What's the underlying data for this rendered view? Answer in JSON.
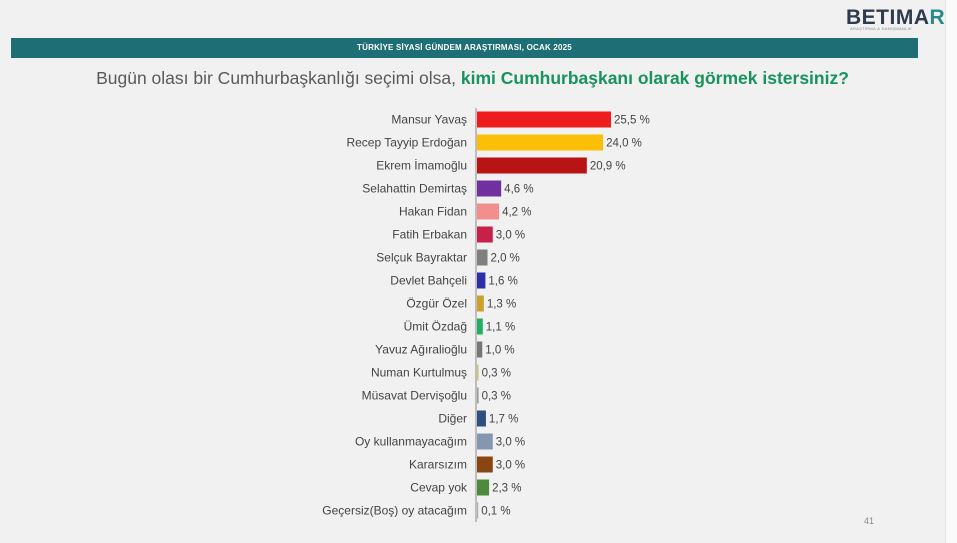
{
  "header": {
    "logo_text_main": "BETIMA",
    "logo_text_accent": "R",
    "logo_subtitle": "ARAŞTIRMA & DANIŞMANLIK",
    "banner": "TÜRKİYE SİYASİ GÜNDEM ARAŞTIRMASI, OCAK 2025"
  },
  "question": {
    "prefix": "Bugün olası bir Cumhurbaşkanlığı seçimi olsa,",
    "highlight": "kimi Cumhurbaşkanı olarak görmek istersiniz?"
  },
  "page_number": "41",
  "chart_data": {
    "type": "bar",
    "orientation": "horizontal",
    "categories": [
      "Mansur Yavaş",
      "Recep Tayyip Erdoğan",
      "Ekrem İmamoğlu",
      "Selahattin Demirtaş",
      "Hakan Fidan",
      "Fatih Erbakan",
      "Selçuk Bayraktar",
      "Devlet Bahçeli",
      "Özgür Özel",
      "Ümit Özdağ",
      "Yavuz Ağıralioğlu",
      "Numan Kurtulmuş",
      "Müsavat Dervişoğlu",
      "Diğer",
      "Oy kullanmayacağım",
      "Kararsızım",
      "Cevap yok",
      "Geçersiz(Boş) oy atacağım"
    ],
    "values": [
      25.5,
      24.0,
      20.9,
      4.6,
      4.2,
      3.0,
      2.0,
      1.6,
      1.3,
      1.1,
      1.0,
      0.3,
      0.3,
      1.7,
      3.0,
      3.0,
      2.3,
      0.1
    ],
    "value_labels": [
      "25,5 %",
      "24,0 %",
      "20,9 %",
      "4,6 %",
      "4,2 %",
      "3,0 %",
      "2,0 %",
      "1,6 %",
      "1,3 %",
      "1,1 %",
      "1,0 %",
      "0,3 %",
      "0,3 %",
      "1,7 %",
      "3,0 %",
      "3,0 %",
      "2,3 %",
      "0,1 %"
    ],
    "colors": [
      "#ee1c1c",
      "#fbbf08",
      "#b81414",
      "#7030a0",
      "#f28e8e",
      "#c7214a",
      "#7f7f7f",
      "#2e2ea8",
      "#c9a227",
      "#1fae62",
      "#767676",
      "#c8c870",
      "#9a9a9a",
      "#2f4f7f",
      "#8596b0",
      "#8b4513",
      "#4e8a3e",
      "#b0b0b0"
    ],
    "title": "",
    "xlabel": "",
    "ylabel": "",
    "xlim": [
      0,
      25.5
    ],
    "grid": false,
    "legend": "none"
  }
}
